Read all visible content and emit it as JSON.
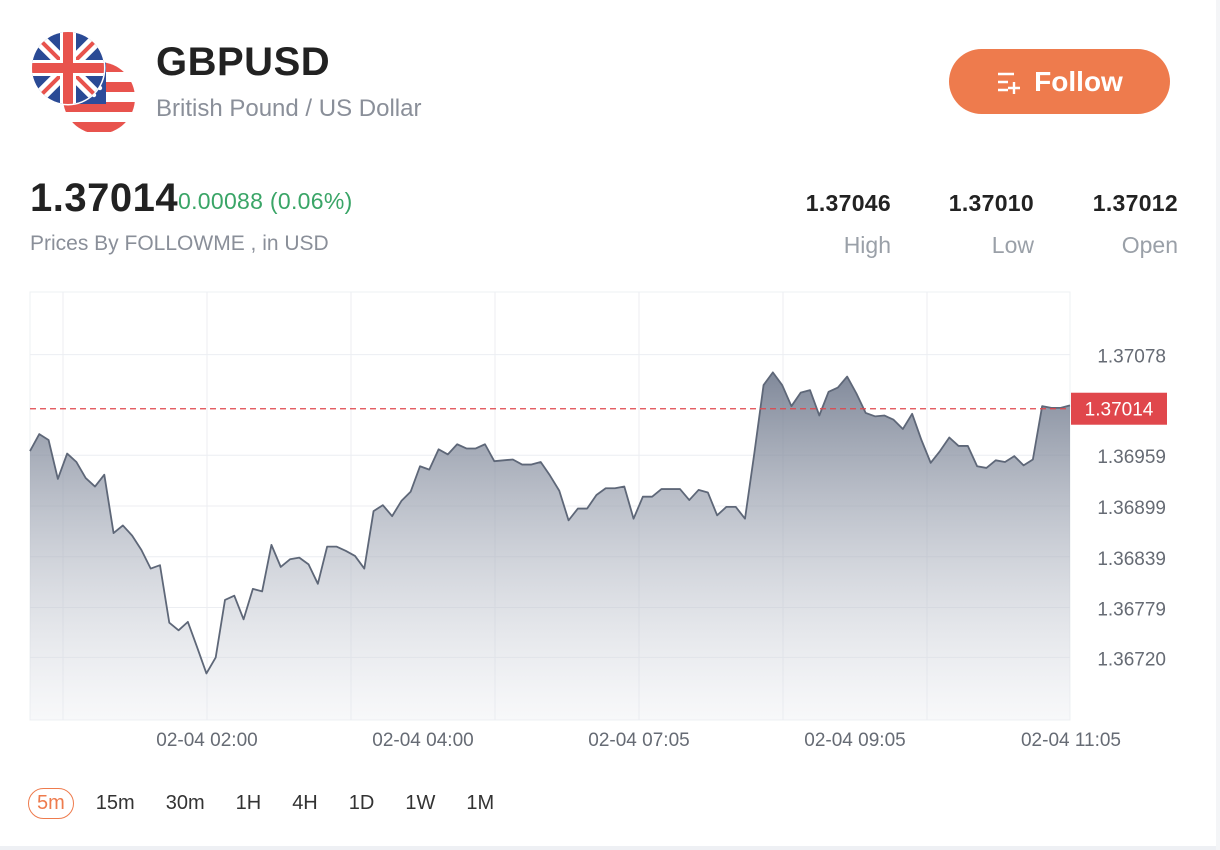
{
  "header": {
    "symbol": "GBPUSD",
    "name": "British Pound / US Dollar",
    "follow_label": "Follow"
  },
  "quote": {
    "price": "1.37014",
    "change": "0.00088 (0.06%)",
    "source": "Prices By FOLLOWME , in USD",
    "stats": [
      {
        "value": "1.37046",
        "label": "High"
      },
      {
        "value": "1.37010",
        "label": "Low"
      },
      {
        "value": "1.37012",
        "label": "Open"
      }
    ]
  },
  "colors": {
    "accent": "#ee7b4d",
    "up": "#3aa567",
    "current_price_line": "#e0474c",
    "series_line": "#5e6778"
  },
  "intervals": {
    "items": [
      "5m",
      "15m",
      "30m",
      "1H",
      "4H",
      "1D",
      "1W",
      "1M"
    ],
    "active": "5m"
  },
  "chart_data": {
    "type": "area",
    "x_tick_labels": [
      "02-04 02:00",
      "02-04 04:00",
      "02-04 07:05",
      "02-04 09:05",
      "02-04 11:05"
    ],
    "y_tick_labels": [
      "1.37078",
      "1.36959",
      "1.36899",
      "1.36839",
      "1.36779",
      "1.36720"
    ],
    "current_price_label": "1.37014",
    "current_price": 1.37014,
    "ylim": [
      1.36646,
      1.37152
    ],
    "grid": true,
    "series": [
      {
        "values": [
          1.36964,
          1.36984,
          1.36977,
          1.36931,
          1.36961,
          1.36951,
          1.36932,
          1.36922,
          1.36936,
          1.36867,
          1.36876,
          1.36864,
          1.36847,
          1.36825,
          1.36829,
          1.36761,
          1.36752,
          1.36762,
          1.36732,
          1.36701,
          1.3672,
          1.36788,
          1.36793,
          1.36765,
          1.36801,
          1.36798,
          1.36853,
          1.36827,
          1.36836,
          1.36838,
          1.3683,
          1.36807,
          1.36851,
          1.36851,
          1.36846,
          1.3684,
          1.36825,
          1.36893,
          1.369,
          1.36887,
          1.36905,
          1.36916,
          1.36946,
          1.36942,
          1.36966,
          1.3696,
          1.36972,
          1.36967,
          1.36967,
          1.36972,
          1.36952,
          1.36953,
          1.36954,
          1.36948,
          1.36948,
          1.36951,
          1.36935,
          1.36917,
          1.36882,
          1.36896,
          1.36896,
          1.36912,
          1.3692,
          1.3692,
          1.36922,
          1.36884,
          1.3691,
          1.3691,
          1.36919,
          1.36919,
          1.36919,
          1.36906,
          1.36918,
          1.36915,
          1.36888,
          1.36898,
          1.36898,
          1.36884,
          1.36961,
          1.37042,
          1.37057,
          1.37042,
          1.37017,
          1.37033,
          1.37036,
          1.37006,
          1.37034,
          1.37039,
          1.37052,
          1.37032,
          1.37009,
          1.37005,
          1.37006,
          1.37001,
          1.3699,
          1.37008,
          1.36977,
          1.3695,
          1.36964,
          1.3698,
          1.3697,
          1.3697,
          1.36946,
          1.36944,
          1.36953,
          1.36951,
          1.36958,
          1.36947,
          1.36954,
          1.37017,
          1.37015,
          1.37015,
          1.37018
        ]
      }
    ]
  }
}
